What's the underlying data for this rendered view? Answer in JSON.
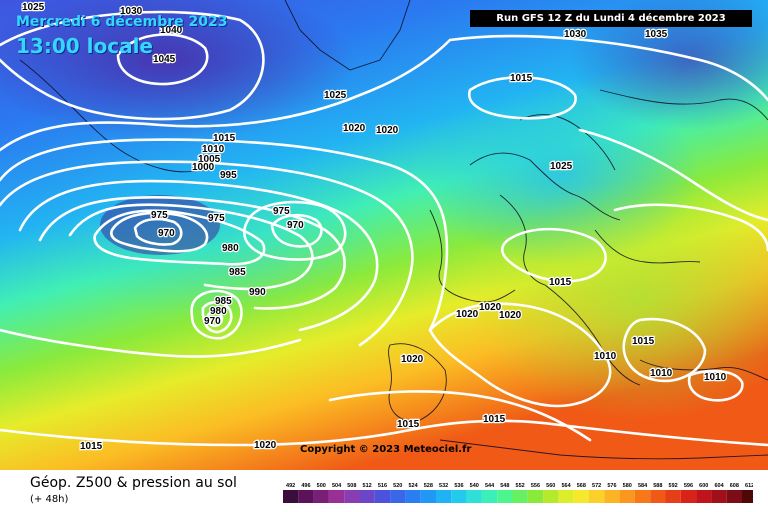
{
  "header": {
    "date_line": "Mercredi 6 décembre 2023",
    "local_time": "13:00 locale",
    "run_info": "Run GFS 12 Z du Lundi 4 décembre 2023"
  },
  "copyright": "Copyright © 2023 Meteociel.fr",
  "footer": {
    "title": "Géop. Z500 & pression au sol",
    "subtitle": "(+ 48h)"
  },
  "legend": {
    "values": [
      "492",
      "496",
      "500",
      "504",
      "508",
      "512",
      "516",
      "520",
      "524",
      "528",
      "532",
      "536",
      "540",
      "544",
      "548",
      "552",
      "556",
      "560",
      "564",
      "568",
      "572",
      "576",
      "580",
      "584",
      "588",
      "592",
      "596",
      "600",
      "604",
      "608",
      "612"
    ],
    "colors": [
      "#3b0d3b",
      "#5a135a",
      "#7a1f78",
      "#9a2f96",
      "#8a3cb2",
      "#6b46c8",
      "#4d52dc",
      "#3a66e8",
      "#2a7ef2",
      "#1f98f6",
      "#1fb2f4",
      "#22caec",
      "#2ee0d8",
      "#3aefb8",
      "#4cf58e",
      "#66f062",
      "#8aea3c",
      "#b4ea2c",
      "#dcee2a",
      "#f6e82c",
      "#fbd02a",
      "#fcb424",
      "#fb961e",
      "#f77818",
      "#f05a16",
      "#e63e16",
      "#d82418",
      "#c0141a",
      "#a0101a",
      "#7c0c16",
      "#4e0808"
    ]
  },
  "isobars": {
    "labels": [
      "1025",
      "1030",
      "1040",
      "1045",
      "1030",
      "1035",
      "1015",
      "1025",
      "1020",
      "1020",
      "1015",
      "1010",
      "1005",
      "1000",
      "995",
      "1025",
      "975",
      "975",
      "975",
      "970",
      "970",
      "980",
      "985",
      "990",
      "985",
      "980",
      "970",
      "1015",
      "1020",
      "1020",
      "1020",
      "1020",
      "1010",
      "1015",
      "1010",
      "1010",
      "1015",
      "1015",
      "1015",
      "1020"
    ]
  }
}
